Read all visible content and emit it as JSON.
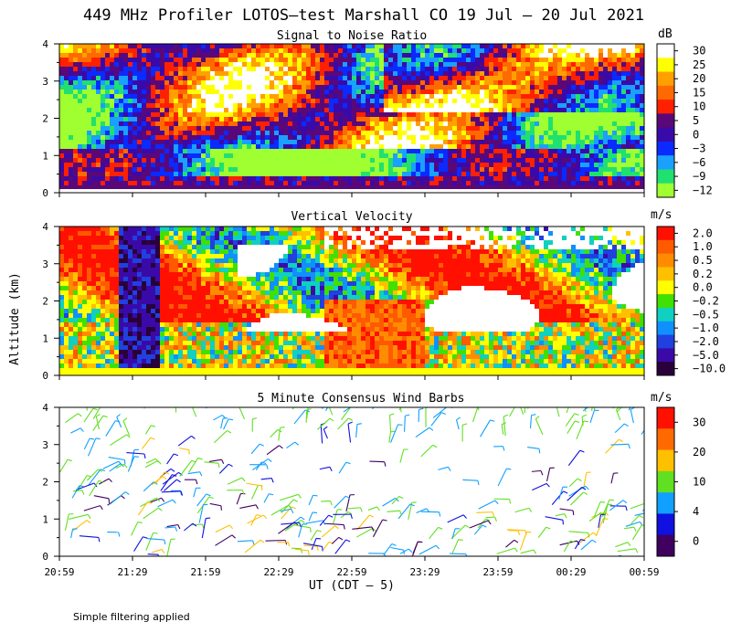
{
  "main_title": "449 MHz Profiler LOTOS–test Marshall CO 19 Jul – 20 Jul 2021",
  "y_axis_label": "Altitude (km)",
  "footer_note": "Simple filtering applied",
  "chart_data": [
    {
      "type": "heatmap",
      "title": "Signal to Noise Ratio",
      "colorbar_unit": "dB",
      "colorbar_ticks": [
        "30",
        "25",
        "20",
        "15",
        "10",
        "5",
        "0",
        "−3",
        "−6",
        "−9",
        "−12"
      ],
      "colorbar_colors": [
        "#ffffff",
        "#ffff00",
        "#ffa000",
        "#ff6a00",
        "#ff2000",
        "#5a0878",
        "#3a0aa8",
        "#0a2aff",
        "#1aa0ff",
        "#20e070",
        "#a0ff30"
      ],
      "ylim": [
        0,
        4
      ],
      "yticks": [
        "0",
        "1",
        "2",
        "3",
        "4"
      ],
      "ground_band_color": "#5a0878"
    },
    {
      "type": "heatmap",
      "title": "Vertical Velocity",
      "colorbar_unit": "m/s",
      "colorbar_ticks": [
        "2.0",
        "1.0",
        "0.5",
        "0.2",
        "0.0",
        "−0.2",
        "−0.5",
        "−1.0",
        "−2.0",
        "−5.0",
        "−10.0"
      ],
      "colorbar_colors": [
        "#ff1000",
        "#ff5a00",
        "#ff8c00",
        "#ffc000",
        "#ffff00",
        "#40e000",
        "#10d0c0",
        "#1090ff",
        "#2040e0",
        "#3a0aa8",
        "#2a003a"
      ],
      "ylim": [
        0,
        4
      ],
      "yticks": [
        "0",
        "1",
        "2",
        "3",
        "4"
      ],
      "ground_band_color": "#ffff00"
    },
    {
      "type": "scatter",
      "title": "5 Minute Consensus Wind Barbs",
      "colorbar_unit": "m/s",
      "colorbar_ticks": [
        "30",
        "20",
        "10",
        "4",
        "0"
      ],
      "colorbar_colors": [
        "#ff1000",
        "#ff6a00",
        "#ffc000",
        "#60e020",
        "#10a0ff",
        "#1010e0",
        "#400060"
      ],
      "ylim": [
        0,
        4
      ],
      "yticks": [
        "0",
        "1",
        "2",
        "3",
        "4"
      ]
    }
  ],
  "x_ticks": [
    "20:59",
    "21:29",
    "21:59",
    "22:29",
    "22:59",
    "23:29",
    "23:59",
    "00:29",
    "00:59"
  ],
  "x_axis_label": "UT  (CDT – 5)"
}
